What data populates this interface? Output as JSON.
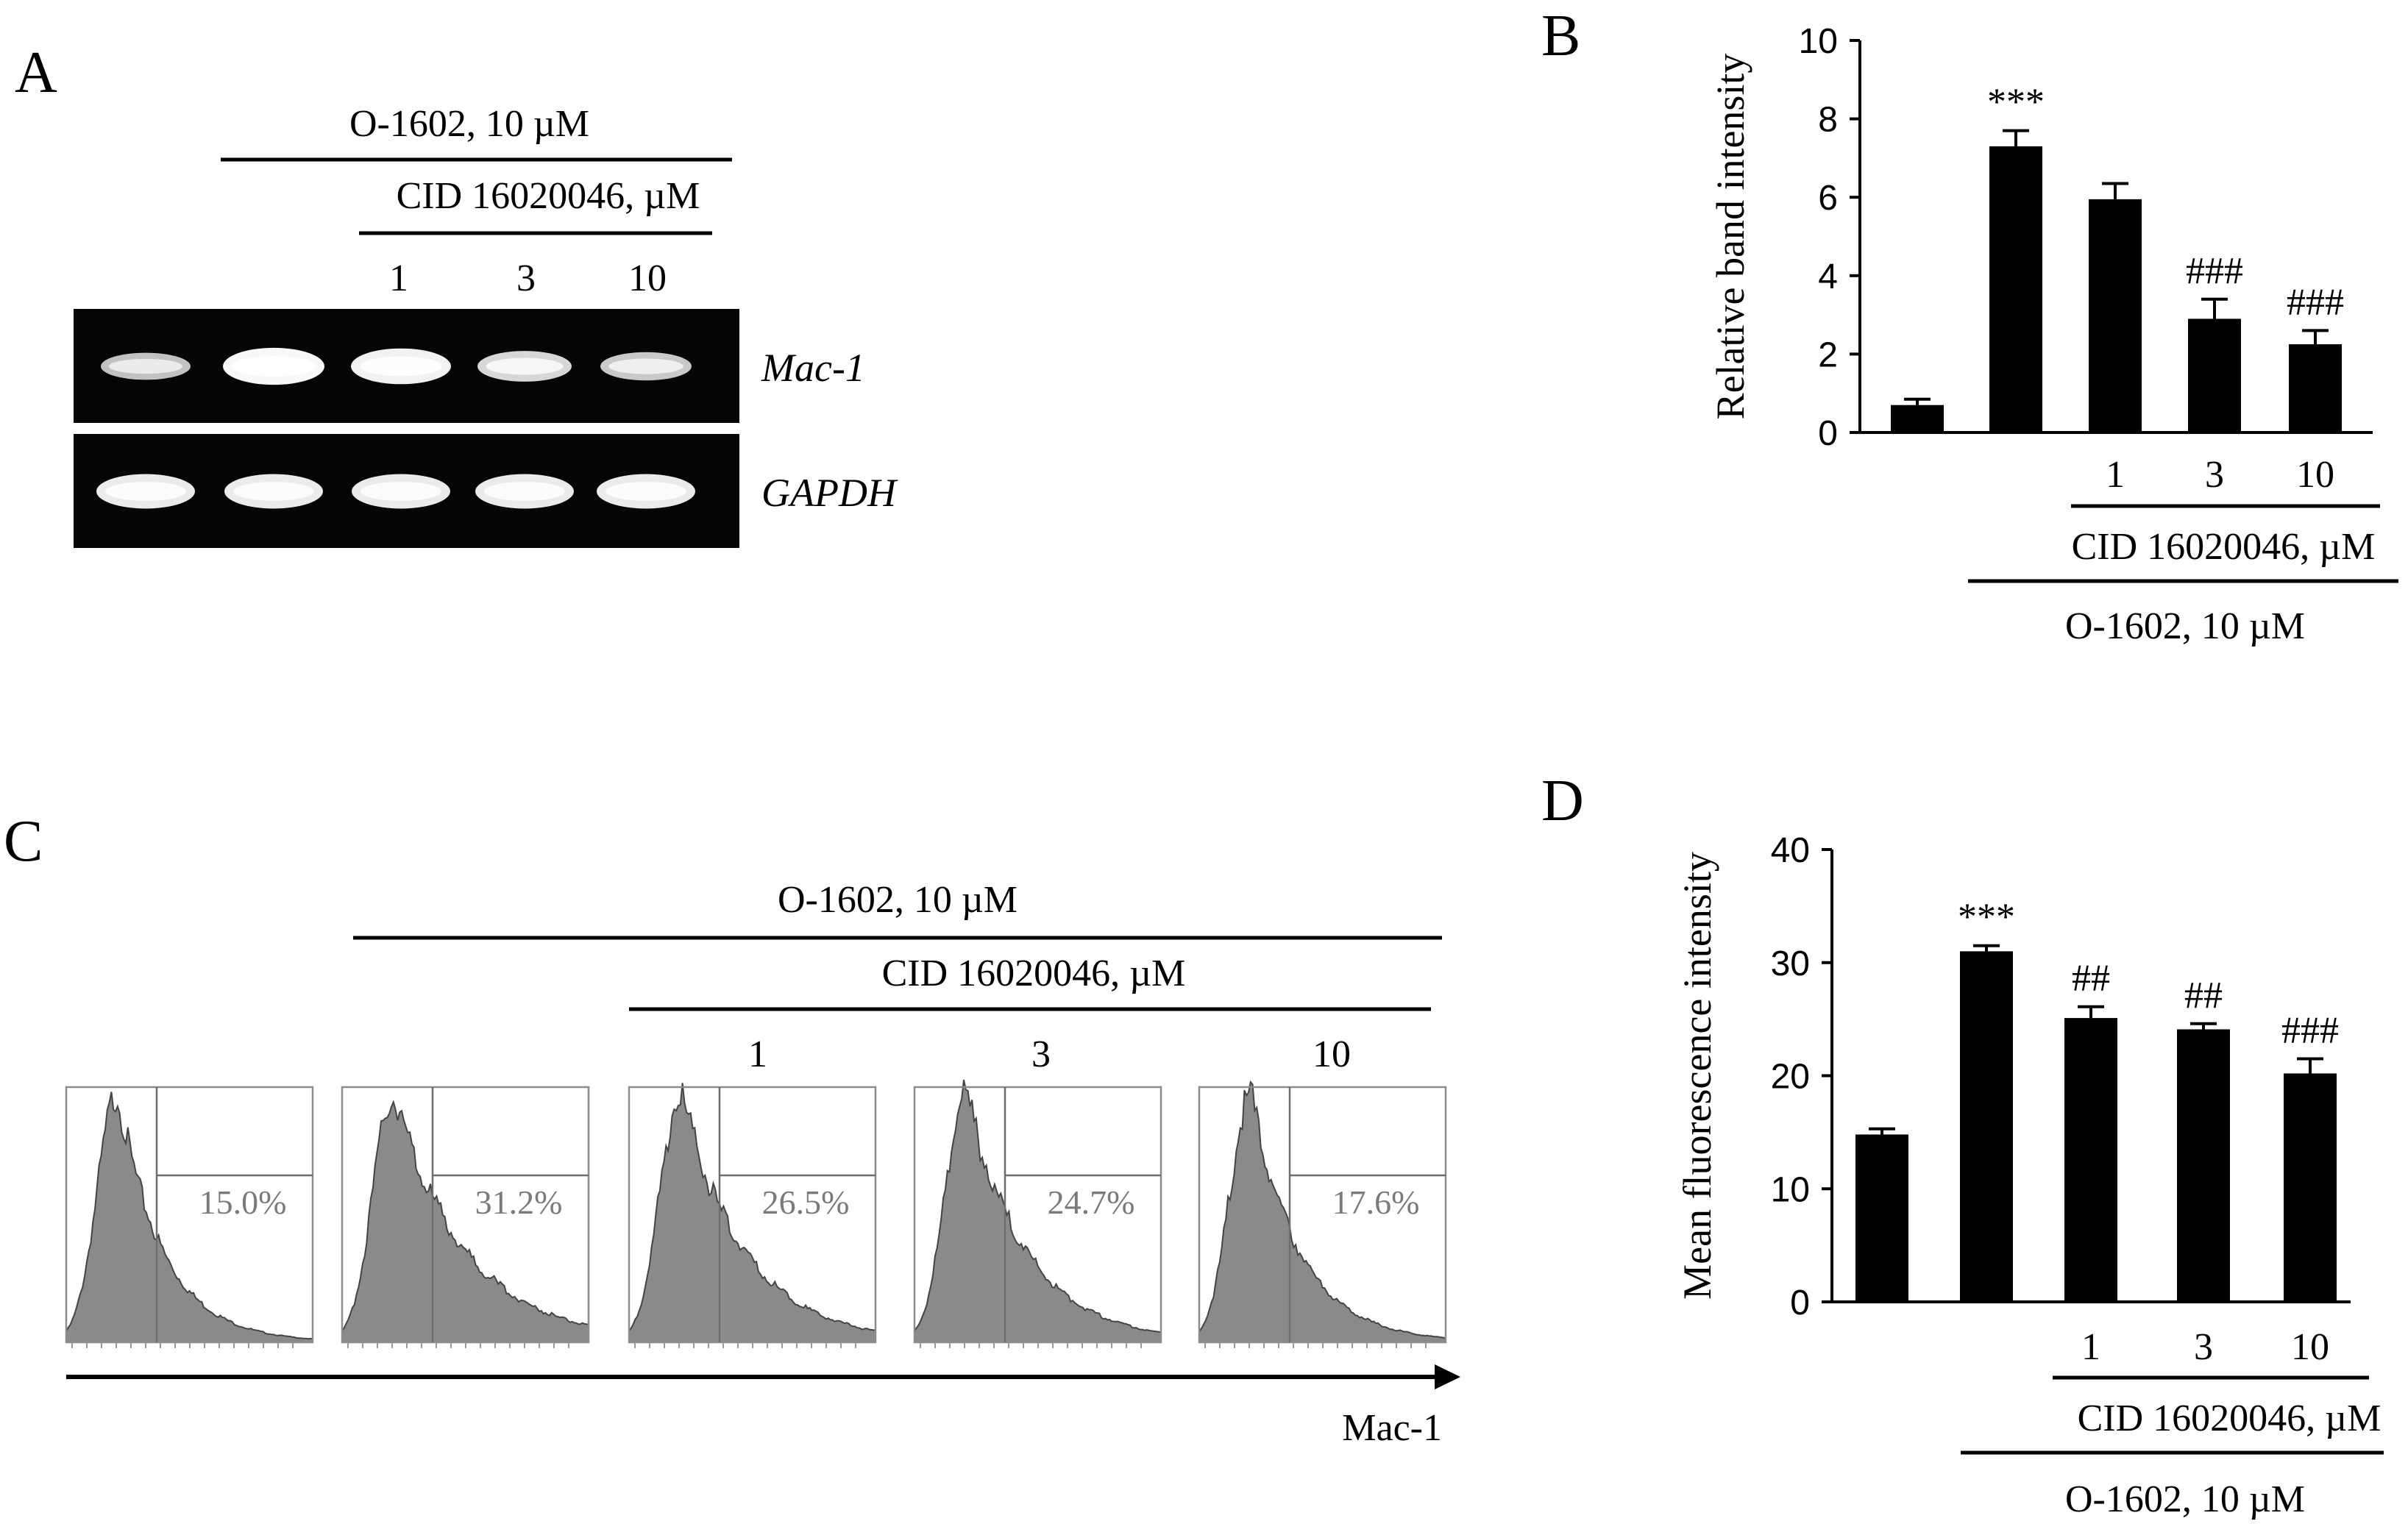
{
  "panels": {
    "A": {
      "label": "A",
      "o1602_label": "O-1602, 10 µM",
      "cid_label": "CID 16020046, µM",
      "cid_doses": [
        "1",
        "3",
        "10"
      ],
      "gels": [
        {
          "name": "Mac-1",
          "band_strength": [
            0.55,
            0.95,
            0.9,
            0.7,
            0.6
          ]
        },
        {
          "name": "GAPDH",
          "band_strength": [
            0.85,
            0.85,
            0.85,
            0.85,
            0.85
          ]
        }
      ]
    },
    "C": {
      "label": "C",
      "o1602_label": "O-1602, 10 µM",
      "cid_label": "CID 16020046, µM",
      "cid_doses": [
        "1",
        "3",
        "10"
      ],
      "histograms": [
        {
          "pct": "15.0%",
          "tail": 0.15
        },
        {
          "pct": "31.2%",
          "tail": 0.31
        },
        {
          "pct": "26.5%",
          "tail": 0.26
        },
        {
          "pct": "24.7%",
          "tail": 0.24
        },
        {
          "pct": "17.6%",
          "tail": 0.17
        }
      ],
      "axis_label": "Mac-1"
    }
  },
  "chart_data": [
    {
      "panel": "B",
      "label": "B",
      "type": "bar",
      "ylabel": "Relative band intensity",
      "ylim": [
        0,
        10
      ],
      "yticks": [
        0,
        2,
        4,
        6,
        8,
        10
      ],
      "categories": [
        "",
        "",
        "1",
        "3",
        "10"
      ],
      "values": [
        0.7,
        7.3,
        5.95,
        2.9,
        2.25
      ],
      "errors": [
        0.15,
        0.4,
        0.4,
        0.5,
        0.35
      ],
      "annotations": [
        "",
        "***",
        "",
        "###",
        "###"
      ],
      "cid_label": "CID 16020046, µM",
      "o1602_label": "O-1602, 10 µM"
    },
    {
      "panel": "D",
      "label": "D",
      "type": "bar",
      "ylabel": "Mean fluorescence intensity",
      "ylim": [
        0,
        40
      ],
      "yticks": [
        0,
        10,
        20,
        30,
        40
      ],
      "categories": [
        "",
        "",
        "1",
        "3",
        "10"
      ],
      "values": [
        14.8,
        31.0,
        25.1,
        24.1,
        20.2
      ],
      "errors": [
        0.5,
        0.5,
        1.0,
        0.5,
        1.3
      ],
      "annotations": [
        "",
        "***",
        "##",
        "##",
        "###"
      ],
      "cid_label": "CID 16020046, µM",
      "o1602_label": "O-1602, 10 µM"
    }
  ]
}
